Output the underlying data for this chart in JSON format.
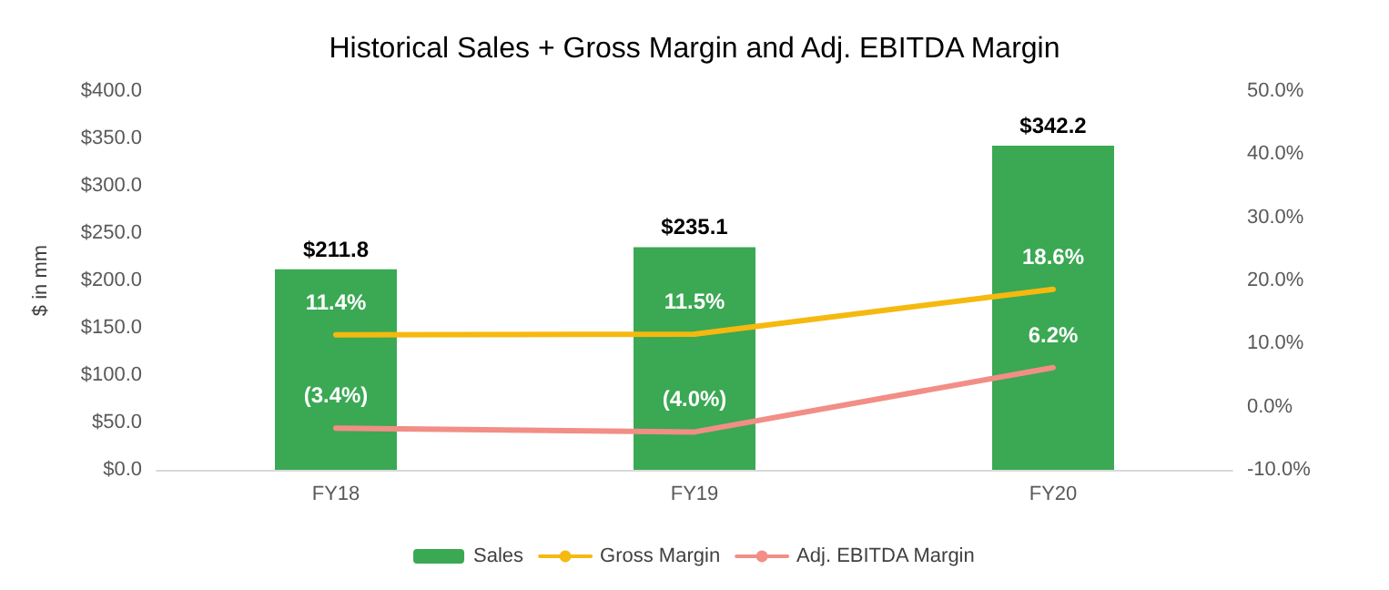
{
  "chart_data": {
    "type": "bar",
    "title": "Historical Sales + Gross Margin and Adj. EBITDA Margin",
    "ylabel": "$ in mm",
    "categories": [
      "FY18",
      "FY19",
      "FY20"
    ],
    "series": [
      {
        "name": "Sales",
        "color": "#3ba853",
        "values": [
          211.8,
          235.1,
          342.2
        ],
        "value_labels": [
          "$211.8",
          "$235.1",
          "$342.2"
        ]
      },
      {
        "name": "Gross Margin",
        "type": "line",
        "axis": "y2",
        "color": "#f5b90f",
        "values": [
          11.4,
          11.5,
          18.6
        ],
        "value_labels": [
          "11.4%",
          "11.5%",
          "18.6%"
        ]
      },
      {
        "name": "Adj. EBITDA Margin",
        "type": "line",
        "axis": "y2",
        "color": "#f28e86",
        "values": [
          -3.4,
          -4.0,
          6.2
        ],
        "value_labels": [
          "(3.4%)",
          "(4.0%)",
          "6.2%"
        ]
      }
    ],
    "ylim": [
      0,
      400
    ],
    "yticks": [
      {
        "value": 0,
        "label": "$0.0"
      },
      {
        "value": 50,
        "label": "$50.0"
      },
      {
        "value": 100,
        "label": "$100.0"
      },
      {
        "value": 150,
        "label": "$150.0"
      },
      {
        "value": 200,
        "label": "$200.0"
      },
      {
        "value": 250,
        "label": "$250.0"
      },
      {
        "value": 300,
        "label": "$300.0"
      },
      {
        "value": 350,
        "label": "$350.0"
      },
      {
        "value": 400,
        "label": "$400.0"
      }
    ],
    "y2lim": [
      -10,
      50
    ],
    "y2ticks": [
      {
        "value": -10,
        "label": "-10.0%"
      },
      {
        "value": 0,
        "label": "0.0%"
      },
      {
        "value": 10,
        "label": "10.0%"
      },
      {
        "value": 20,
        "label": "20.0%"
      },
      {
        "value": 30,
        "label": "30.0%"
      },
      {
        "value": 40,
        "label": "40.0%"
      },
      {
        "value": 50,
        "label": "50.0%"
      }
    ],
    "grid": false,
    "legend": "bottom",
    "marker": "none",
    "line_style": "solid"
  }
}
